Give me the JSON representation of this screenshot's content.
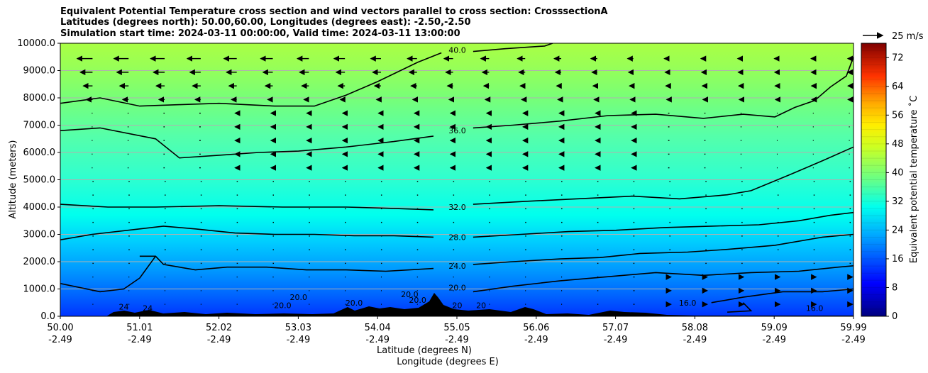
{
  "chart_data": {
    "type": "contour",
    "title": [
      "Equivalent Potential Temperature cross section and wind vectors parallel to cross section: CrosssectionA",
      "Latitudes (degrees north): 50.00,60.00, Longitudes (degrees east): -2.50,-2.50",
      "Simulation start time: 2024-03-11 00:00:00, Valid time: 2024-03-11 13:00:00"
    ],
    "xlabel": "Latitude (degrees N)",
    "xlabel2": "Longitude (degrees E)",
    "ylabel": "Altitude (meters)",
    "xlim": [
      50.0,
      59.99
    ],
    "ylim": [
      0,
      10000
    ],
    "grid": "horizontal",
    "x_ticks": [
      "50.00",
      "51.01",
      "52.02",
      "53.03",
      "54.04",
      "55.05",
      "56.06",
      "57.07",
      "58.08",
      "59.09",
      "59.99"
    ],
    "x_ticks2": [
      "-2.49",
      "-2.49",
      "-2.49",
      "-2.49",
      "-2.49",
      "-2.49",
      "-2.49",
      "-2.49",
      "-2.49",
      "-2.49",
      "-2.49"
    ],
    "y_ticks": [
      "0.0",
      "1000.0",
      "2000.0",
      "3000.0",
      "4000.0",
      "5000.0",
      "6000.0",
      "7000.0",
      "8000.0",
      "9000.0",
      "10000.0"
    ],
    "y_tick_values": [
      0,
      1000,
      2000,
      3000,
      4000,
      5000,
      6000,
      7000,
      8000,
      9000,
      10000
    ],
    "colorbar": {
      "label": "Equivalent potential temperature ˚C",
      "min": 0,
      "max": 76,
      "ticks": [
        "0",
        "8",
        "16",
        "24",
        "32",
        "40",
        "48",
        "56",
        "64",
        "72"
      ],
      "tick_values": [
        0,
        8,
        16,
        24,
        32,
        40,
        48,
        56,
        64,
        72
      ]
    },
    "contours": [
      {
        "level": "40.0",
        "points": [
          [
            55.2,
            9700
          ],
          [
            55.6,
            9800
          ],
          [
            56.1,
            9900
          ],
          [
            56.2,
            10000
          ]
        ]
      },
      {
        "level": "36.0",
        "points": [
          [
            50.0,
            7800
          ],
          [
            50.5,
            8000
          ],
          [
            51.0,
            7700
          ],
          [
            51.5,
            7750
          ],
          [
            52.0,
            7800
          ],
          [
            52.7,
            7700
          ],
          [
            53.2,
            7700
          ],
          [
            53.6,
            8100
          ],
          [
            54.0,
            8600
          ],
          [
            54.5,
            9300
          ],
          [
            54.8,
            9650
          ]
        ]
      },
      {
        "level": "36.0",
        "points": [
          [
            50.0,
            6800
          ],
          [
            50.5,
            6900
          ],
          [
            51.2,
            6500
          ],
          [
            51.5,
            5800
          ],
          [
            52.0,
            5900
          ],
          [
            52.5,
            6000
          ],
          [
            53.0,
            6050
          ],
          [
            53.6,
            6200
          ],
          [
            54.2,
            6400
          ],
          [
            54.7,
            6600
          ]
        ]
      },
      {
        "level": "36.0",
        "points": [
          [
            55.2,
            6900
          ],
          [
            55.7,
            7000
          ],
          [
            56.3,
            7150
          ],
          [
            56.9,
            7350
          ],
          [
            57.5,
            7400
          ],
          [
            58.1,
            7250
          ],
          [
            58.6,
            7400
          ],
          [
            59.0,
            7300
          ],
          [
            59.25,
            7650
          ],
          [
            59.5,
            7900
          ],
          [
            59.7,
            8400
          ],
          [
            59.9,
            8800
          ],
          [
            59.99,
            9500
          ]
        ]
      },
      {
        "level": "32.0",
        "points": [
          [
            50.0,
            4100
          ],
          [
            50.6,
            4000
          ],
          [
            51.2,
            4000
          ],
          [
            52.0,
            4050
          ],
          [
            52.8,
            4000
          ],
          [
            53.6,
            4000
          ],
          [
            54.2,
            3950
          ],
          [
            54.7,
            3900
          ]
        ]
      },
      {
        "level": "32.0",
        "points": [
          [
            55.2,
            4100
          ],
          [
            55.8,
            4200
          ],
          [
            56.5,
            4300
          ],
          [
            57.2,
            4400
          ],
          [
            57.8,
            4300
          ],
          [
            58.4,
            4450
          ],
          [
            58.7,
            4600
          ],
          [
            59.2,
            5200
          ],
          [
            59.6,
            5700
          ],
          [
            59.99,
            6200
          ]
        ]
      },
      {
        "level": "28.0",
        "points": [
          [
            50.0,
            2800
          ],
          [
            50.4,
            3000
          ],
          [
            51.0,
            3200
          ],
          [
            51.3,
            3300
          ],
          [
            51.7,
            3200
          ],
          [
            52.2,
            3050
          ],
          [
            52.7,
            3000
          ],
          [
            53.2,
            3000
          ],
          [
            53.7,
            2950
          ],
          [
            54.2,
            2950
          ],
          [
            54.7,
            2900
          ]
        ]
      },
      {
        "level": "28.0",
        "points": [
          [
            55.2,
            2900
          ],
          [
            55.8,
            3000
          ],
          [
            56.4,
            3100
          ],
          [
            57.0,
            3150
          ],
          [
            57.6,
            3250
          ],
          [
            58.2,
            3300
          ],
          [
            58.8,
            3350
          ],
          [
            59.3,
            3500
          ],
          [
            59.7,
            3700
          ],
          [
            59.99,
            3800
          ]
        ]
      },
      {
        "level": "24.0",
        "points": [
          [
            51.0,
            2200
          ],
          [
            51.2,
            2200
          ],
          [
            51.3,
            1900
          ],
          [
            51.5,
            1800
          ],
          [
            51.7,
            1700
          ],
          [
            52.1,
            1800
          ],
          [
            52.6,
            1800
          ],
          [
            53.1,
            1700
          ],
          [
            53.6,
            1700
          ],
          [
            54.1,
            1650
          ],
          [
            54.7,
            1750
          ]
        ]
      },
      {
        "level": "24.0",
        "points": [
          [
            55.2,
            1900
          ],
          [
            55.7,
            2000
          ],
          [
            56.3,
            2100
          ],
          [
            56.8,
            2150
          ],
          [
            57.3,
            2300
          ],
          [
            57.9,
            2350
          ],
          [
            58.4,
            2450
          ],
          [
            59.0,
            2600
          ],
          [
            59.6,
            2900
          ],
          [
            59.99,
            3000
          ]
        ]
      },
      {
        "level": "20.0",
        "points": [
          [
            50.0,
            1200
          ],
          [
            50.5,
            900
          ],
          [
            50.8,
            1000
          ],
          [
            51.0,
            1400
          ],
          [
            51.2,
            2200
          ]
        ]
      },
      {
        "level": "20.0",
        "points": [
          [
            55.2,
            900
          ],
          [
            55.7,
            1100
          ],
          [
            56.3,
            1300
          ],
          [
            56.9,
            1450
          ],
          [
            57.5,
            1600
          ],
          [
            58.1,
            1500
          ],
          [
            58.7,
            1600
          ],
          [
            59.3,
            1650
          ],
          [
            59.8,
            1800
          ],
          [
            59.99,
            1850
          ]
        ]
      },
      {
        "level": "16.0",
        "points": [
          [
            58.2,
            500
          ],
          [
            58.6,
            700
          ],
          [
            59.1,
            900
          ],
          [
            59.6,
            900
          ],
          [
            59.99,
            1000
          ]
        ]
      },
      {
        "level": "16.0",
        "points": [
          [
            58.6,
            500
          ],
          [
            58.7,
            200
          ],
          [
            58.4,
            150
          ]
        ]
      }
    ],
    "contour_labels": [
      {
        "text": "40.0",
        "x": 55.0,
        "y": 9750
      },
      {
        "text": "36.0",
        "x": 55.0,
        "y": 6800
      },
      {
        "text": "32.0",
        "x": 55.0,
        "y": 4000
      },
      {
        "text": "28.0",
        "x": 55.0,
        "y": 2900
      },
      {
        "text": "24.0",
        "x": 55.0,
        "y": 1850
      },
      {
        "text": "20.0",
        "x": 55.0,
        "y": 1050
      },
      {
        "text": "20.0",
        "x": 54.4,
        "y": 800
      },
      {
        "text": "20.0",
        "x": 53.0,
        "y": 700
      },
      {
        "text": "20.0",
        "x": 52.8,
        "y": 400
      },
      {
        "text": "20.0",
        "x": 53.7,
        "y": 500
      },
      {
        "text": "20.0",
        "x": 54.5,
        "y": 600
      },
      {
        "text": "20",
        "x": 55.0,
        "y": 400
      },
      {
        "text": "20",
        "x": 55.3,
        "y": 400
      },
      {
        "text": "24",
        "x": 50.8,
        "y": 350
      },
      {
        "text": "24",
        "x": 51.1,
        "y": 300
      },
      {
        "text": "16.0",
        "x": 57.9,
        "y": 500
      },
      {
        "text": "16.0",
        "x": 59.5,
        "y": 300
      }
    ],
    "wind_reference": {
      "label": "25 m/s",
      "speed": 25
    }
  }
}
